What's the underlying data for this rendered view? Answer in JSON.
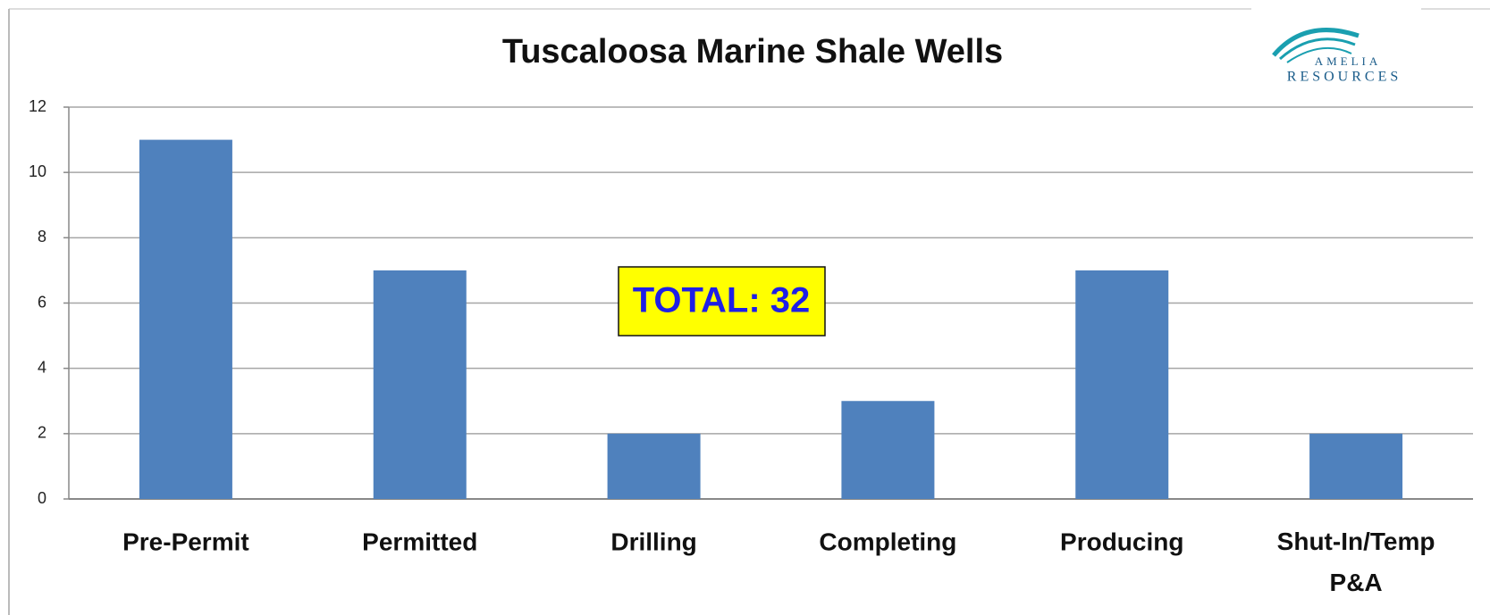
{
  "chart_data": {
    "type": "bar",
    "title": "Tuscaloosa Marine Shale Wells",
    "categories": [
      "Pre-Permit",
      "Permitted",
      "Drilling",
      "Completing",
      "Producing",
      "Shut-In/Temp P&A"
    ],
    "values": [
      11,
      7,
      2,
      3,
      7,
      2
    ],
    "color": "#4f81bd",
    "ylim": [
      0,
      12
    ],
    "yticks": [
      0,
      2,
      4,
      6,
      8,
      10,
      12
    ],
    "grid": true,
    "annotation": "TOTAL: 32",
    "logo": {
      "line1": "AMELIA",
      "line2": "RESOURCES"
    }
  }
}
